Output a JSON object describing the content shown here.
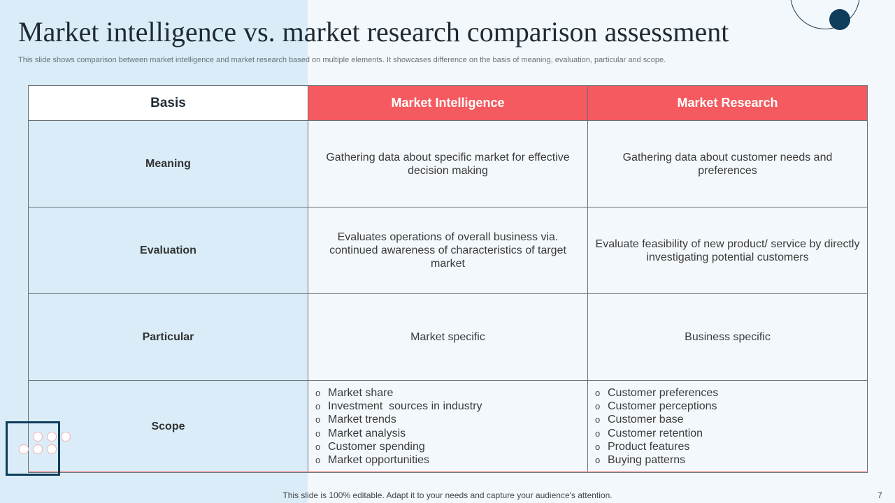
{
  "slide": {
    "title": "Market intelligence vs. market research comparison assessment",
    "subtitle": "This slide shows comparison between market intelligence and market research based on multiple elements. It showcases difference on the basis of meaning, evaluation, particular and scope.",
    "footer": "This slide is 100% editable. Adapt it to your needs and capture your audience's attention.",
    "page_number": "7",
    "colors": {
      "accent_red": "#f45a5f",
      "navy": "#0f3d5c",
      "light_blue": "#d9ecf8"
    }
  },
  "table": {
    "headers": {
      "basis": "Basis",
      "col1": "Market Intelligence",
      "col2": "Market Research"
    },
    "rows": [
      {
        "basis": "Meaning",
        "col1": "Gathering data about specific market for effective decision making",
        "col2": "Gathering data about customer needs and preferences"
      },
      {
        "basis": "Evaluation",
        "col1": "Evaluates operations of overall business via. continued awareness of characteristics of target market",
        "col2": "Evaluate feasibility of new product/ service by directly investigating potential customers"
      },
      {
        "basis": "Particular",
        "col1": "Market specific",
        "col2": "Business specific"
      }
    ],
    "scope": {
      "basis": "Scope",
      "bullet_marker": "o",
      "col1": [
        "Market share",
        "Investment  sources in industry",
        "Market trends",
        "Market analysis",
        "Customer spending",
        "Market opportunities"
      ],
      "col2": [
        "Customer preferences",
        "Customer perceptions",
        "Customer base",
        "Customer retention",
        "Product features",
        "Buying patterns"
      ]
    }
  }
}
